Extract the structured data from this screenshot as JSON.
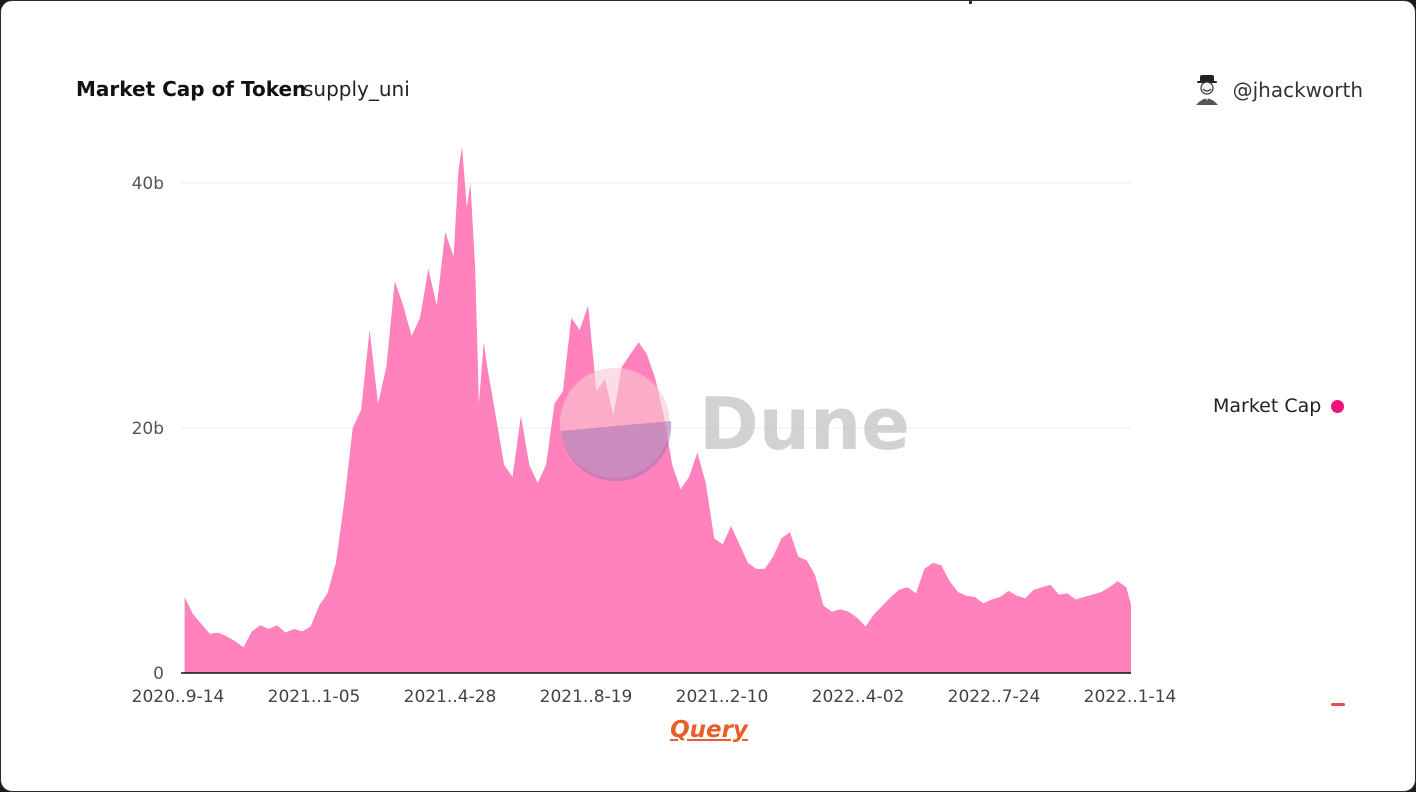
{
  "header": {
    "title": "Market Cap of Token",
    "subtitle": "supply_uni",
    "author": "@jhackworth"
  },
  "watermark": "Dune",
  "query_link": "Query",
  "colors": {
    "area": "#ff82bd",
    "legend_dot": "#f0137c",
    "query_link": "#e85d2a"
  },
  "chart_data": {
    "type": "area",
    "title": "Market Cap of Token",
    "xlabel": "",
    "ylabel": "",
    "ylim": [
      0,
      43000000000
    ],
    "y_ticks": [
      0,
      20000000000,
      40000000000
    ],
    "y_tick_labels": [
      "0",
      "20b",
      "40b"
    ],
    "x_tick_labels": [
      "2020..9-14",
      "2021..1-05",
      "2021..4-28",
      "2021..8-19",
      "2021..2-10",
      "2022..4-02",
      "2022..7-24",
      "2022..1-14"
    ],
    "grid": true,
    "legend_position": "right",
    "series": [
      {
        "name": "Market Cap",
        "x": [
          "2020-09-17",
          "2020-09-24",
          "2020-10-01",
          "2020-10-08",
          "2020-10-15",
          "2020-10-22",
          "2020-10-29",
          "2020-11-05",
          "2020-11-12",
          "2020-11-19",
          "2020-11-26",
          "2020-12-03",
          "2020-12-10",
          "2020-12-17",
          "2020-12-24",
          "2020-12-31",
          "2021-01-07",
          "2021-01-14",
          "2021-01-21",
          "2021-01-28",
          "2021-02-04",
          "2021-02-11",
          "2021-02-18",
          "2021-02-25",
          "2021-03-04",
          "2021-03-11",
          "2021-03-18",
          "2021-03-25",
          "2021-04-01",
          "2021-04-08",
          "2021-04-15",
          "2021-04-22",
          "2021-04-29",
          "2021-05-03",
          "2021-05-06",
          "2021-05-10",
          "2021-05-13",
          "2021-05-17",
          "2021-05-20",
          "2021-05-24",
          "2021-05-27",
          "2021-06-03",
          "2021-06-10",
          "2021-06-17",
          "2021-06-24",
          "2021-07-01",
          "2021-07-08",
          "2021-07-15",
          "2021-07-22",
          "2021-07-29",
          "2021-08-05",
          "2021-08-12",
          "2021-08-19",
          "2021-08-26",
          "2021-09-02",
          "2021-09-09",
          "2021-09-16",
          "2021-09-23",
          "2021-09-30",
          "2021-10-07",
          "2021-10-14",
          "2021-10-21",
          "2021-10-28",
          "2021-11-04",
          "2021-11-11",
          "2021-11-18",
          "2021-11-25",
          "2021-12-02",
          "2021-12-09",
          "2021-12-16",
          "2021-12-23",
          "2021-12-30",
          "2022-01-06",
          "2022-01-13",
          "2022-01-20",
          "2022-01-27",
          "2022-02-03",
          "2022-02-10",
          "2022-02-17",
          "2022-02-24",
          "2022-03-03",
          "2022-03-10",
          "2022-03-17",
          "2022-03-24",
          "2022-03-31",
          "2022-04-07",
          "2022-04-14",
          "2022-04-21",
          "2022-04-28",
          "2022-05-05",
          "2022-05-12",
          "2022-05-19",
          "2022-05-26",
          "2022-06-02",
          "2022-06-09",
          "2022-06-16",
          "2022-06-23",
          "2022-06-30",
          "2022-07-07",
          "2022-07-14",
          "2022-07-21",
          "2022-07-28",
          "2022-08-04",
          "2022-08-11",
          "2022-08-18",
          "2022-08-25",
          "2022-09-01",
          "2022-09-08",
          "2022-09-15",
          "2022-09-22",
          "2022-09-29",
          "2022-10-06",
          "2022-10-13",
          "2022-10-20",
          "2022-10-27",
          "2022-11-03",
          "2022-11-10",
          "2022-11-14"
        ],
        "values": [
          6200000000,
          4800000000,
          4000000000,
          3200000000,
          3300000000,
          3000000000,
          2600000000,
          2100000000,
          3400000000,
          3900000000,
          3600000000,
          3900000000,
          3300000000,
          3600000000,
          3400000000,
          3800000000,
          5500000000,
          6500000000,
          9000000000,
          14000000000,
          20000000000,
          21500000000,
          28000000000,
          22000000000,
          25000000000,
          32000000000,
          30000000000,
          27500000000,
          29000000000,
          33000000000,
          30000000000,
          36000000000,
          34000000000,
          41000000000,
          43000000000,
          38000000000,
          40000000000,
          33000000000,
          22000000000,
          27000000000,
          25000000000,
          21000000000,
          17000000000,
          16000000000,
          21000000000,
          17000000000,
          15500000000,
          17000000000,
          22000000000,
          23000000000,
          29000000000,
          28000000000,
          30000000000,
          23000000000,
          24000000000,
          21000000000,
          25000000000,
          26000000000,
          27000000000,
          26000000000,
          24000000000,
          21000000000,
          17000000000,
          15000000000,
          16000000000,
          18000000000,
          15500000000,
          11000000000,
          10500000000,
          12000000000,
          10500000000,
          9000000000,
          8500000000,
          8500000000,
          9500000000,
          11000000000,
          11500000000,
          9500000000,
          9200000000,
          8000000000,
          5500000000,
          5000000000,
          5200000000,
          5000000000,
          4500000000,
          3800000000,
          4800000000,
          5500000000,
          6200000000,
          6800000000,
          7000000000,
          6500000000,
          8500000000,
          9000000000,
          8800000000,
          7500000000,
          6600000000,
          6300000000,
          6200000000,
          5700000000,
          6000000000,
          6200000000,
          6700000000,
          6300000000,
          6100000000,
          6800000000,
          7000000000,
          7200000000,
          6400000000,
          6500000000,
          6000000000,
          6200000000,
          6400000000,
          6600000000,
          7000000000,
          7500000000,
          7000000000,
          5600000000
        ]
      }
    ]
  }
}
